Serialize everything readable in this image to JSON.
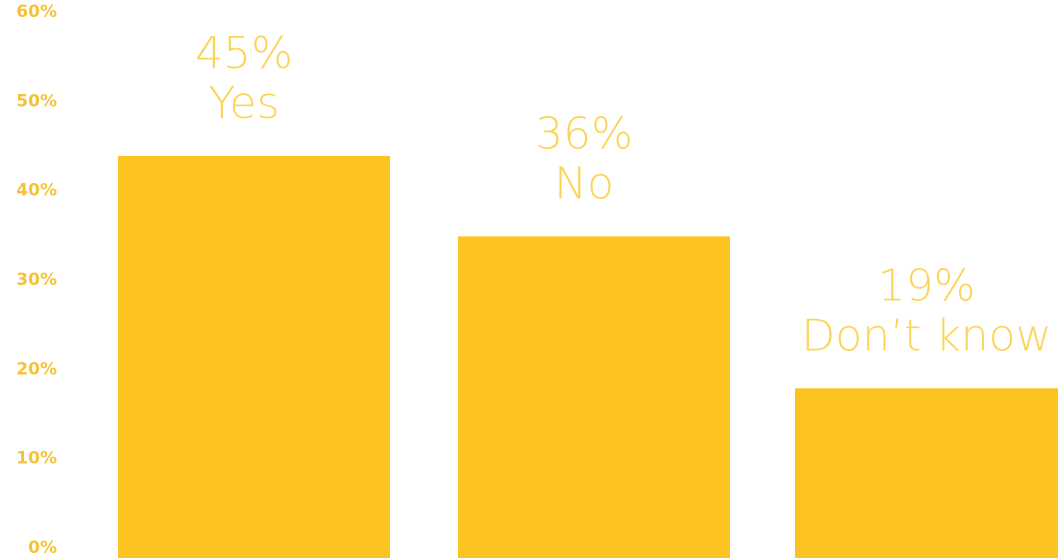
{
  "chart_data": {
    "type": "bar",
    "title": "",
    "xlabel": "",
    "ylabel": "",
    "ylim": [
      0,
      60
    ],
    "yticks": [
      "0%",
      "10%",
      "20%",
      "30%",
      "40%",
      "50%",
      "60%"
    ],
    "ytick_values": [
      0,
      10,
      20,
      30,
      40,
      50,
      60
    ],
    "categories": [
      "Yes",
      "No",
      "Don’t know"
    ],
    "values": [
      45,
      36,
      19
    ],
    "value_labels": [
      "45%",
      "36%",
      "19%"
    ],
    "grid": false,
    "legend": "none",
    "colors": {
      "bar": "#FDC421",
      "tick_text": "#F5C33B",
      "label_text": "#FBD55A"
    }
  }
}
